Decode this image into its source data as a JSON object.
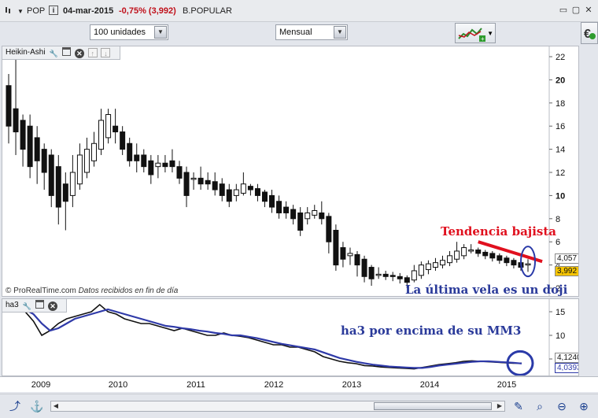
{
  "titlebar": {
    "symbol": "POP",
    "date": "04-mar-2015",
    "change": "-0,75% (3,992)",
    "name": "B.POPULAR",
    "minimize": "▭",
    "restore": "▢",
    "close": "✕"
  },
  "toolbar": {
    "units_select": "100 unidades",
    "period_select": "Mensual"
  },
  "main_panel": {
    "indicator_label": "Heikin-Ashi",
    "y_ticks": [
      "22",
      "20",
      "18",
      "16",
      "14",
      "12",
      "10",
      "8",
      "6",
      "4",
      "2"
    ],
    "price_tag_upper": "4,057",
    "price_tag_lower": "3,992",
    "watermark": "© ProRealTime.com",
    "watermark_note": "Datos recibidos en fin de día",
    "annotation_trend": "Tendencia bajista",
    "annotation_doji": "La última vela es un doji",
    "colors": {
      "trend_line": "#e0101e",
      "annotation_blue": "#2a3a9a",
      "ellipse": "#2a3aa8"
    }
  },
  "sub_panel": {
    "indicator_label": "ha3",
    "y_ticks": [
      "15",
      "10",
      "5"
    ],
    "value_tag_upper": "4,1240",
    "value_tag_lower": "4,0393",
    "annotation": "ha3 por encima de su MM3",
    "colors": {
      "ha3_line": "#111111",
      "mm3_line": "#2f3aa8"
    }
  },
  "x_axis": {
    "years": [
      "2009",
      "2010",
      "2011",
      "2012",
      "2013",
      "2014",
      "2015"
    ]
  },
  "chart_data": {
    "type": "candlestick",
    "subtype": "heikin-ashi",
    "title": "POP",
    "period": "monthly",
    "ylim": [
      2,
      22
    ],
    "y_ticks": [
      22,
      20,
      18,
      16,
      14,
      12,
      10,
      8,
      6,
      4,
      2
    ],
    "x_ticks": [
      "2009",
      "2010",
      "2011",
      "2012",
      "2013",
      "2014",
      "2015"
    ],
    "last_price": 3.992,
    "last_ha": 4.057,
    "candles": [
      {
        "o": 19.5,
        "c": 16.0,
        "h": 20.5,
        "l": 14.5
      },
      {
        "o": 17.5,
        "c": 15.5,
        "h": 22.0,
        "l": 13.5
      },
      {
        "o": 16.5,
        "c": 14.0,
        "h": 17.0,
        "l": 12.5
      },
      {
        "o": 16.0,
        "c": 12.5,
        "h": 17.0,
        "l": 11.5
      },
      {
        "o": 15.0,
        "c": 13.0,
        "h": 16.0,
        "l": 11.0
      },
      {
        "o": 14.0,
        "c": 12.0,
        "h": 14.5,
        "l": 10.5
      },
      {
        "o": 13.5,
        "c": 10.0,
        "h": 14.0,
        "l": 9.0
      },
      {
        "o": 12.5,
        "c": 9.0,
        "h": 13.5,
        "l": 7.5
      },
      {
        "o": 11.0,
        "c": 9.5,
        "h": 12.0,
        "l": 7.0
      },
      {
        "o": 10.0,
        "c": 12.0,
        "h": 13.5,
        "l": 9.0
      },
      {
        "o": 11.0,
        "c": 13.5,
        "h": 14.5,
        "l": 10.5
      },
      {
        "o": 12.0,
        "c": 14.0,
        "h": 15.0,
        "l": 11.5
      },
      {
        "o": 13.0,
        "c": 14.5,
        "h": 15.5,
        "l": 12.5
      },
      {
        "o": 14.0,
        "c": 16.5,
        "h": 17.5,
        "l": 13.5
      },
      {
        "o": 15.0,
        "c": 17.0,
        "h": 17.5,
        "l": 14.5
      },
      {
        "o": 16.0,
        "c": 15.5,
        "h": 17.5,
        "l": 14.5
      },
      {
        "o": 15.5,
        "c": 14.0,
        "h": 16.0,
        "l": 13.5
      },
      {
        "o": 14.5,
        "c": 13.0,
        "h": 15.0,
        "l": 12.5
      },
      {
        "o": 13.5,
        "c": 13.0,
        "h": 14.5,
        "l": 12.0
      },
      {
        "o": 13.5,
        "c": 12.5,
        "h": 14.0,
        "l": 12.0
      },
      {
        "o": 13.0,
        "c": 11.8,
        "h": 13.5,
        "l": 11.0
      },
      {
        "o": 12.5,
        "c": 12.8,
        "h": 13.5,
        "l": 11.5
      },
      {
        "o": 12.8,
        "c": 12.5,
        "h": 13.5,
        "l": 12.0
      },
      {
        "o": 13.0,
        "c": 12.5,
        "h": 14.0,
        "l": 12.0
      },
      {
        "o": 12.5,
        "c": 11.5,
        "h": 13.0,
        "l": 11.0
      },
      {
        "o": 12.0,
        "c": 10.0,
        "h": 12.5,
        "l": 9.0
      },
      {
        "o": 11.5,
        "c": 11.5,
        "h": 12.0,
        "l": 10.5
      },
      {
        "o": 11.5,
        "c": 11.0,
        "h": 12.5,
        "l": 10.5
      },
      {
        "o": 11.3,
        "c": 11.0,
        "h": 12.0,
        "l": 10.5
      },
      {
        "o": 11.2,
        "c": 10.5,
        "h": 12.0,
        "l": 10.0
      },
      {
        "o": 11.0,
        "c": 10.0,
        "h": 11.5,
        "l": 9.5
      },
      {
        "o": 10.5,
        "c": 9.5,
        "h": 11.0,
        "l": 9.0
      },
      {
        "o": 10.0,
        "c": 10.5,
        "h": 11.0,
        "l": 9.5
      },
      {
        "o": 10.2,
        "c": 11.0,
        "h": 12.0,
        "l": 10.0
      },
      {
        "o": 10.8,
        "c": 10.5,
        "h": 11.0,
        "l": 10.0
      },
      {
        "o": 10.6,
        "c": 10.0,
        "h": 11.0,
        "l": 9.5
      },
      {
        "o": 10.3,
        "c": 9.5,
        "h": 10.5,
        "l": 9.0
      },
      {
        "o": 10.0,
        "c": 9.0,
        "h": 10.5,
        "l": 8.5
      },
      {
        "o": 9.5,
        "c": 8.5,
        "h": 10.0,
        "l": 8.0
      },
      {
        "o": 9.0,
        "c": 8.5,
        "h": 9.5,
        "l": 8.0
      },
      {
        "o": 8.8,
        "c": 8.0,
        "h": 9.2,
        "l": 7.5
      },
      {
        "o": 8.5,
        "c": 7.0,
        "h": 9.0,
        "l": 6.5
      },
      {
        "o": 8.0,
        "c": 8.5,
        "h": 9.0,
        "l": 7.5
      },
      {
        "o": 8.3,
        "c": 8.7,
        "h": 9.2,
        "l": 8.0
      },
      {
        "o": 8.5,
        "c": 8.0,
        "h": 9.5,
        "l": 7.5
      },
      {
        "o": 8.2,
        "c": 6.0,
        "h": 8.5,
        "l": 5.0
      },
      {
        "o": 7.0,
        "c": 4.0,
        "h": 7.5,
        "l": 3.5
      },
      {
        "o": 5.5,
        "c": 4.5,
        "h": 6.0,
        "l": 3.8
      },
      {
        "o": 4.8,
        "c": 5.0,
        "h": 5.5,
        "l": 4.0
      },
      {
        "o": 4.9,
        "c": 4.0,
        "h": 5.2,
        "l": 3.0
      },
      {
        "o": 4.5,
        "c": 3.0,
        "h": 4.8,
        "l": 2.5
      },
      {
        "o": 3.8,
        "c": 2.8,
        "h": 4.0,
        "l": 2.2
      },
      {
        "o": 3.2,
        "c": 3.2,
        "h": 3.8,
        "l": 2.8
      },
      {
        "o": 3.2,
        "c": 3.0,
        "h": 3.5,
        "l": 2.7
      },
      {
        "o": 3.1,
        "c": 3.0,
        "h": 3.4,
        "l": 2.6
      },
      {
        "o": 3.0,
        "c": 2.8,
        "h": 3.3,
        "l": 2.4
      },
      {
        "o": 2.9,
        "c": 2.5,
        "h": 3.1,
        "l": 2.0
      },
      {
        "o": 2.7,
        "c": 3.5,
        "h": 4.0,
        "l": 2.5
      },
      {
        "o": 3.1,
        "c": 4.0,
        "h": 4.3,
        "l": 2.8
      },
      {
        "o": 3.6,
        "c": 4.1,
        "h": 4.4,
        "l": 3.2
      },
      {
        "o": 3.8,
        "c": 4.2,
        "h": 4.6,
        "l": 3.5
      },
      {
        "o": 4.0,
        "c": 4.4,
        "h": 4.8,
        "l": 3.7
      },
      {
        "o": 4.2,
        "c": 4.8,
        "h": 5.2,
        "l": 3.9
      },
      {
        "o": 4.5,
        "c": 5.2,
        "h": 6.0,
        "l": 4.2
      },
      {
        "o": 4.8,
        "c": 5.5,
        "h": 5.8,
        "l": 4.5
      },
      {
        "o": 5.2,
        "c": 5.3,
        "h": 5.8,
        "l": 5.0
      },
      {
        "o": 5.3,
        "c": 5.0,
        "h": 5.5,
        "l": 4.7
      },
      {
        "o": 5.1,
        "c": 4.8,
        "h": 5.3,
        "l": 4.5
      },
      {
        "o": 5.0,
        "c": 4.6,
        "h": 5.2,
        "l": 4.3
      },
      {
        "o": 4.8,
        "c": 4.4,
        "h": 5.0,
        "l": 4.1
      },
      {
        "o": 4.6,
        "c": 4.2,
        "h": 4.8,
        "l": 3.9
      },
      {
        "o": 4.4,
        "c": 4.0,
        "h": 4.6,
        "l": 3.7
      },
      {
        "o": 4.2,
        "c": 3.8,
        "h": 4.4,
        "l": 3.5
      },
      {
        "o": 4.0,
        "c": 4.1,
        "h": 4.5,
        "l": 3.4
      }
    ],
    "trendline": {
      "from": [
        66,
        6.0
      ],
      "to": [
        75,
        4.3
      ],
      "color": "#e0101e"
    },
    "sub_chart": {
      "ylim": [
        2,
        17
      ],
      "y_ticks": [
        15,
        10,
        5
      ],
      "series": [
        {
          "name": "ha3",
          "color": "#111111",
          "values": [
            16.0,
            16.5,
            15.0,
            13.0,
            10.0,
            11.0,
            12.5,
            13.5,
            14.0,
            14.5,
            15.0,
            16.5,
            15.0,
            14.5,
            13.5,
            13.0,
            12.5,
            12.5,
            12.0,
            11.5,
            11.0,
            11.5,
            11.0,
            10.5,
            10.0,
            10.0,
            10.5,
            10.0,
            9.8,
            9.5,
            9.0,
            8.5,
            8.0,
            8.0,
            7.5,
            7.5,
            7.0,
            6.5,
            5.5,
            5.0,
            4.5,
            4.2,
            4.0,
            3.6,
            3.5,
            3.3,
            3.2,
            3.1,
            3.0,
            2.9,
            3.2,
            3.5,
            3.8,
            4.0,
            4.2,
            4.5,
            4.6,
            4.5,
            4.4,
            4.3,
            4.2,
            4.1,
            4.12
          ]
        },
        {
          "name": "MM3",
          "color": "#2f3aa8",
          "values": [
            16.0,
            16.0,
            15.5,
            14.5,
            12.5,
            11.0,
            11.5,
            12.5,
            13.5,
            14.0,
            14.5,
            15.0,
            15.5,
            15.0,
            14.5,
            14.0,
            13.5,
            13.0,
            12.5,
            12.0,
            11.8,
            11.5,
            11.3,
            11.0,
            10.8,
            10.5,
            10.3,
            10.0,
            10.0,
            9.7,
            9.4,
            9.0,
            8.6,
            8.2,
            7.9,
            7.6,
            7.3,
            7.0,
            6.4,
            5.8,
            5.2,
            4.8,
            4.4,
            4.1,
            3.8,
            3.6,
            3.4,
            3.3,
            3.2,
            3.1,
            3.1,
            3.3,
            3.6,
            3.8,
            4.0,
            4.2,
            4.4,
            4.5,
            4.5,
            4.4,
            4.3,
            4.2,
            4.04
          ]
        }
      ]
    }
  }
}
